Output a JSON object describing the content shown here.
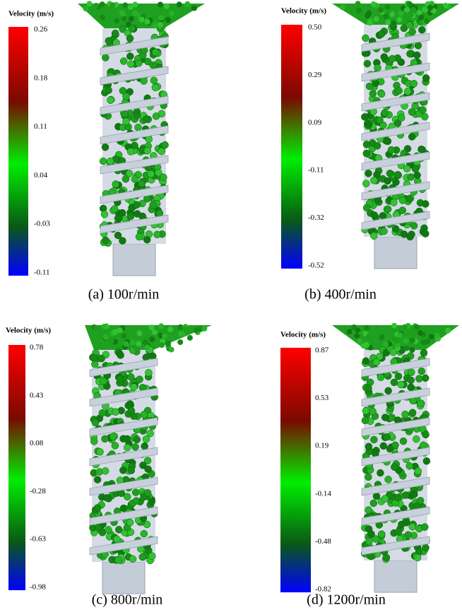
{
  "panels": [
    {
      "legend_title": "Velocity (m/s)",
      "ticks": [
        "0.26",
        "0.18",
        "0.11",
        "0.04",
        "-0.03",
        "-0.11"
      ],
      "caption": "(a) 100r/min"
    },
    {
      "legend_title": "Velocity (m/s)",
      "ticks": [
        "0.50",
        "0.29",
        "0.09",
        "-0.11",
        "-0.32",
        "-0.52"
      ],
      "caption": "(b) 400r/min"
    },
    {
      "legend_title": "Velocity (m/s)",
      "ticks": [
        "0.78",
        "0.43",
        "0.08",
        "-0.28",
        "-0.63",
        "-0.98"
      ],
      "caption": "(c) 800r/min"
    },
    {
      "legend_title": "Velocity (m/s)",
      "ticks": [
        "0.87",
        "0.53",
        "0.19",
        "-0.14",
        "-0.48",
        "-0.82"
      ],
      "caption": "(d) 1200r/min"
    }
  ]
}
